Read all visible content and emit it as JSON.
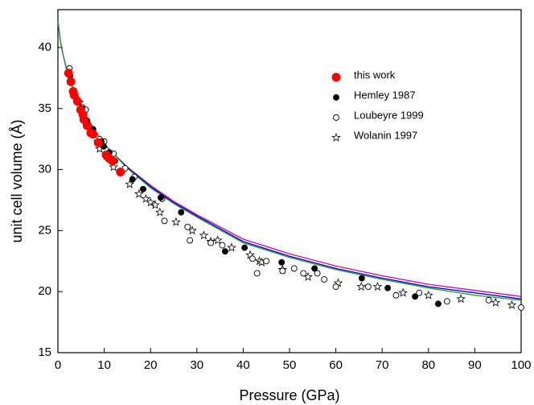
{
  "chart_data": {
    "type": "scatter",
    "xlabel": "Pressure (GPa)",
    "ylabel": "unit cell volume (Å)",
    "xlim": [
      0,
      100
    ],
    "ylim": [
      15,
      43.1
    ],
    "xticks": [
      0,
      10,
      20,
      30,
      40,
      50,
      60,
      70,
      80,
      90,
      100
    ],
    "yticks": [
      15,
      20,
      25,
      30,
      35,
      40
    ],
    "legend": "upper right",
    "series": [
      {
        "name": "this work",
        "color": "#ff0000",
        "marker": "filled-circle",
        "x": [
          2.3,
          2.8,
          3.3,
          3.5,
          4.2,
          4.9,
          5.4,
          5.6,
          6.3,
          7.1,
          7.6,
          8.7,
          10.4,
          11.1,
          11.8,
          13.5
        ],
        "values": [
          37.9,
          37.2,
          36.4,
          36.1,
          35.6,
          34.9,
          34.5,
          34.1,
          33.6,
          33.0,
          32.9,
          32.2,
          31.2,
          30.9,
          30.7,
          29.8
        ]
      },
      {
        "name": "Hemley 1987",
        "color": "#000000",
        "marker": "filled-circle",
        "x": [
          2.6,
          4.0,
          5.2,
          6.3,
          7.6,
          9.4,
          9.9,
          11.1,
          12.3,
          16.1,
          18.4,
          22.2,
          26.6,
          36.1,
          40.3,
          48.3,
          55.4,
          65.6,
          71.2,
          77.1,
          82.1
        ],
        "values": [
          37.7,
          35.8,
          35.0,
          34.0,
          33.3,
          32.3,
          31.9,
          31.4,
          30.7,
          29.2,
          28.4,
          27.7,
          26.5,
          23.3,
          23.6,
          22.4,
          21.9,
          21.1,
          20.3,
          19.6,
          19.0
        ]
      },
      {
        "name": "Loubeyre 1999",
        "color": "#000000",
        "marker": "open-circle",
        "x": [
          2.5,
          4.4,
          5.3,
          6.0,
          7.5,
          9.0,
          10.0,
          11.5,
          12.0,
          14.5,
          16.5,
          22.5,
          23.0,
          28.0,
          28.5,
          33.0,
          35.5,
          42.0,
          43.0,
          45.0,
          48.5,
          51.0,
          53.0,
          56.0,
          57.5,
          60.0,
          67.0,
          73.0,
          78.0,
          84.0,
          93.0,
          100
        ],
        "values": [
          38.3,
          35.5,
          35.1,
          34.9,
          33.0,
          32.5,
          32.3,
          31.3,
          31.3,
          30.1,
          29.4,
          27.6,
          25.8,
          25.3,
          24.2,
          24.0,
          23.8,
          22.7,
          21.5,
          22.5,
          21.7,
          21.9,
          21.5,
          21.5,
          21.0,
          20.4,
          20.4,
          19.7,
          19.9,
          19.2,
          19.3,
          18.7
        ]
      },
      {
        "name": "Wolanin 1997",
        "color": "#000000",
        "marker": "star",
        "x": [
          4.6,
          5.8,
          8.6,
          9.0,
          10.5,
          12.0,
          15.5,
          17.5,
          19.0,
          20.0,
          21.0,
          22.0,
          25.5,
          29.0,
          31.5,
          33.0,
          34.5,
          37.5,
          41.5,
          43.5,
          44.0,
          48.5,
          54.0,
          60.5,
          65.5,
          69.0,
          74.5,
          80.0,
          87.0,
          94.5,
          98.0
        ],
        "values": [
          35.5,
          34.8,
          32.3,
          31.7,
          31.1,
          30.2,
          28.8,
          28.0,
          27.6,
          27.3,
          27.1,
          26.5,
          25.7,
          25.0,
          24.6,
          24.1,
          24.2,
          23.6,
          23.0,
          22.5,
          22.4,
          21.8,
          21.2,
          20.7,
          20.4,
          20.4,
          19.9,
          19.7,
          19.4,
          19.1,
          18.9
        ]
      }
    ],
    "curve_x": [
      0,
      0.5,
      1,
      2,
      3,
      4,
      5,
      6,
      8,
      10,
      12,
      15,
      20,
      25,
      30,
      40,
      50,
      60,
      70,
      80,
      90,
      100
    ],
    "curves": [
      {
        "color": "#cc00cc",
        "values": [
          42.2,
          40.6,
          39.6,
          38.0,
          36.9,
          36.0,
          35.2,
          34.5,
          33.2,
          32.1,
          31.3,
          30.2,
          28.7,
          27.4,
          26.3,
          24.3,
          23.1,
          22.1,
          21.3,
          20.6,
          20.1,
          19.6
        ]
      },
      {
        "color": "#0000cc",
        "values": [
          42.2,
          40.6,
          39.6,
          38.0,
          36.9,
          36.0,
          35.2,
          34.5,
          33.2,
          32.1,
          31.3,
          30.2,
          28.6,
          27.3,
          26.2,
          24.1,
          22.9,
          21.9,
          21.1,
          20.4,
          19.9,
          19.4
        ]
      },
      {
        "color": "#339933",
        "values": [
          42.2,
          40.6,
          39.6,
          38.0,
          36.9,
          36.0,
          35.2,
          34.5,
          33.2,
          32.1,
          31.3,
          30.1,
          28.5,
          27.2,
          26.1,
          24.0,
          22.8,
          21.8,
          21.0,
          20.3,
          19.7,
          19.3
        ]
      }
    ]
  }
}
